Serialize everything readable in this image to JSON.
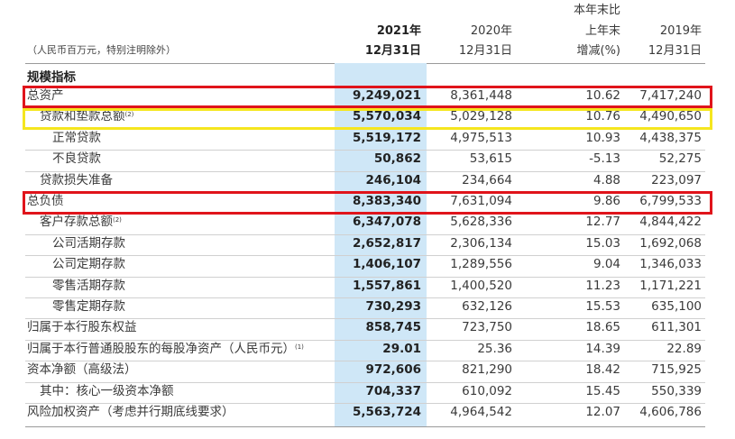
{
  "header": {
    "note": "（人民币百万元，特别注明除外）",
    "col2021": {
      "year": "2021年",
      "date": "12月31日"
    },
    "col2020": {
      "year": "2020年",
      "date": "12月31日"
    },
    "colchg": {
      "line1": "本年末比",
      "line2": "上年末",
      "line3": "增减(%)"
    },
    "col2019": {
      "year": "2019年",
      "date": "12月31日"
    }
  },
  "section_title": "规模指标",
  "rows": [
    {
      "label": "总资产",
      "sup": "",
      "v2021": "9,249,021",
      "v2020": "8,361,448",
      "chg": "10.62",
      "v2019": "7,417,240"
    },
    {
      "label": "贷款和垫款总额",
      "sup": "(2)",
      "v2021": "5,570,034",
      "v2020": "5,029,128",
      "chg": "10.76",
      "v2019": "4,490,650"
    },
    {
      "label": "正常贷款",
      "sup": "",
      "v2021": "5,519,172",
      "v2020": "4,975,513",
      "chg": "10.93",
      "v2019": "4,438,375"
    },
    {
      "label": "不良贷款",
      "sup": "",
      "v2021": "50,862",
      "v2020": "53,615",
      "chg": "-5.13",
      "v2019": "52,275"
    },
    {
      "label": "贷款损失准备",
      "sup": "",
      "v2021": "246,104",
      "v2020": "234,664",
      "chg": "4.88",
      "v2019": "223,097"
    },
    {
      "label": "总负债",
      "sup": "",
      "v2021": "8,383,340",
      "v2020": "7,631,094",
      "chg": "9.86",
      "v2019": "6,799,533"
    },
    {
      "label": "客户存款总额",
      "sup": "(2)",
      "v2021": "6,347,078",
      "v2020": "5,628,336",
      "chg": "12.77",
      "v2019": "4,844,422"
    },
    {
      "label": "公司活期存款",
      "sup": "",
      "v2021": "2,652,817",
      "v2020": "2,306,134",
      "chg": "15.03",
      "v2019": "1,692,068"
    },
    {
      "label": "公司定期存款",
      "sup": "",
      "v2021": "1,406,107",
      "v2020": "1,289,556",
      "chg": "9.04",
      "v2019": "1,346,033"
    },
    {
      "label": "零售活期存款",
      "sup": "",
      "v2021": "1,557,861",
      "v2020": "1,400,520",
      "chg": "11.23",
      "v2019": "1,171,221"
    },
    {
      "label": "零售定期存款",
      "sup": "",
      "v2021": "730,293",
      "v2020": "632,126",
      "chg": "15.53",
      "v2019": "635,100"
    },
    {
      "label": "归属于本行股东权益",
      "sup": "",
      "v2021": "858,745",
      "v2020": "723,750",
      "chg": "18.65",
      "v2019": "611,301"
    },
    {
      "label": "归属于本行普通股股东的每股净资产（人民币元）",
      "sup": "(1)",
      "v2021": "29.01",
      "v2020": "25.36",
      "chg": "14.39",
      "v2019": "22.89"
    },
    {
      "label": "资本净额（高级法）",
      "sup": "",
      "v2021": "972,606",
      "v2020": "821,290",
      "chg": "18.42",
      "v2019": "715,925"
    },
    {
      "label": "其中：核心一级资本净额",
      "sup": "",
      "v2021": "704,337",
      "v2020": "610,092",
      "chg": "15.45",
      "v2019": "550,339"
    },
    {
      "label": "风险加权资产（考虑并行期底线要求）",
      "sup": "",
      "v2021": "5,563,724",
      "v2020": "4,964,542",
      "chg": "12.07",
      "v2019": "4,606,786"
    }
  ],
  "highlights": {
    "red": "#e0141b",
    "yellow": "#f5e61f",
    "column": "#cfe7f7"
  }
}
